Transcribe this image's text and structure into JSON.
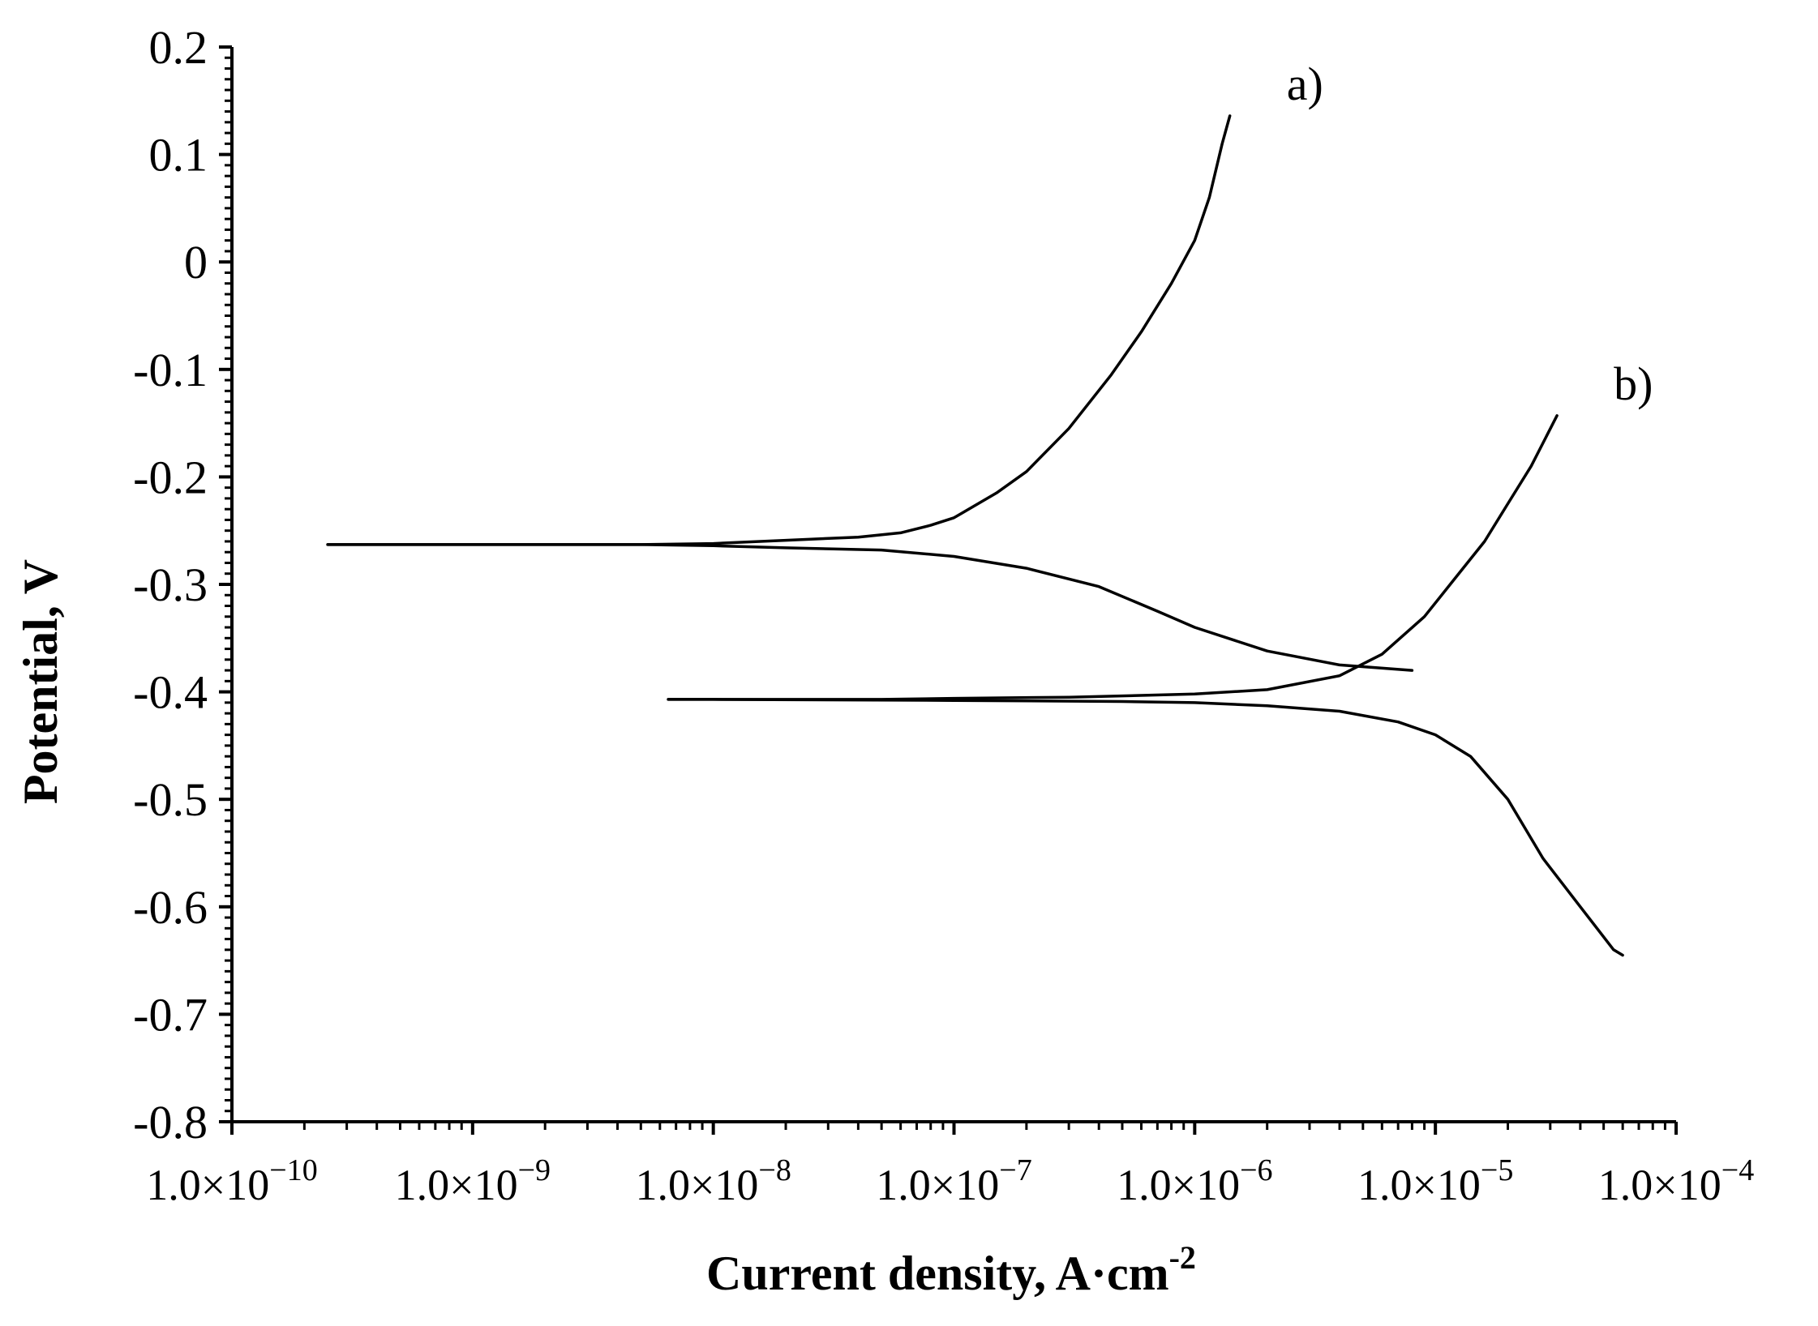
{
  "chart_data": {
    "type": "line",
    "xlabel": "Current density, A·cm",
    "xlabel_superscript": "-2",
    "ylabel": "Potential, V",
    "x_scale": "log",
    "xlim": [
      1e-10,
      0.0001
    ],
    "ylim": [
      -0.8,
      0.2
    ],
    "grid": false,
    "legend": "none",
    "line_color": "#000000",
    "y_ticks": [
      {
        "value": 0.2,
        "label": "0.2"
      },
      {
        "value": 0.1,
        "label": "0.1"
      },
      {
        "value": 0.0,
        "label": "0"
      },
      {
        "value": -0.1,
        "label": "-0.1"
      },
      {
        "value": -0.2,
        "label": "-0.2"
      },
      {
        "value": -0.3,
        "label": "-0.3"
      },
      {
        "value": -0.4,
        "label": "-0.4"
      },
      {
        "value": -0.5,
        "label": "-0.5"
      },
      {
        "value": -0.6,
        "label": "-0.6"
      },
      {
        "value": -0.7,
        "label": "-0.7"
      },
      {
        "value": -0.8,
        "label": "-0.8"
      }
    ],
    "x_ticks": [
      {
        "value": 1e-10,
        "mantissa": "1.0×10",
        "exp": "−10"
      },
      {
        "value": 1e-09,
        "mantissa": "1.0×10",
        "exp": "−9"
      },
      {
        "value": 1e-08,
        "mantissa": "1.0×10",
        "exp": "−8"
      },
      {
        "value": 1e-07,
        "mantissa": "1.0×10",
        "exp": "−7"
      },
      {
        "value": 1e-06,
        "mantissa": "1.0×10",
        "exp": "−6"
      },
      {
        "value": 1e-05,
        "mantissa": "1.0×10",
        "exp": "−5"
      },
      {
        "value": 0.0001,
        "mantissa": "1.0×10",
        "exp": "−4"
      }
    ],
    "series": [
      {
        "name": "a)",
        "anodic": [
          [
            2.5e-10,
            -0.263
          ],
          [
            1e-09,
            -0.263
          ],
          [
            5e-09,
            -0.263
          ],
          [
            1e-08,
            -0.262
          ],
          [
            2e-08,
            -0.259
          ],
          [
            4e-08,
            -0.256
          ],
          [
            6e-08,
            -0.252
          ],
          [
            8e-08,
            -0.245
          ],
          [
            1e-07,
            -0.238
          ],
          [
            1.5e-07,
            -0.215
          ],
          [
            2e-07,
            -0.195
          ],
          [
            3e-07,
            -0.155
          ],
          [
            4.5e-07,
            -0.105
          ],
          [
            6e-07,
            -0.065
          ],
          [
            8e-07,
            -0.02
          ],
          [
            1e-06,
            0.02
          ],
          [
            1.15e-06,
            0.06
          ],
          [
            1.3e-06,
            0.11
          ],
          [
            1.4e-06,
            0.136
          ]
        ],
        "cathodic": [
          [
            2.5e-10,
            -0.263
          ],
          [
            1e-09,
            -0.263
          ],
          [
            5e-09,
            -0.263
          ],
          [
            1e-08,
            -0.264
          ],
          [
            2e-08,
            -0.266
          ],
          [
            5e-08,
            -0.268
          ],
          [
            1e-07,
            -0.274
          ],
          [
            2e-07,
            -0.285
          ],
          [
            4e-07,
            -0.302
          ],
          [
            7e-07,
            -0.325
          ],
          [
            1e-06,
            -0.34
          ],
          [
            2e-06,
            -0.362
          ],
          [
            4e-06,
            -0.375
          ],
          [
            8e-06,
            -0.38
          ]
        ]
      },
      {
        "name": "b)",
        "anodic": [
          [
            6.5e-09,
            -0.407
          ],
          [
            1e-08,
            -0.407
          ],
          [
            5e-08,
            -0.407
          ],
          [
            1e-07,
            -0.406
          ],
          [
            3e-07,
            -0.405
          ],
          [
            1e-06,
            -0.402
          ],
          [
            2e-06,
            -0.398
          ],
          [
            4e-06,
            -0.385
          ],
          [
            6e-06,
            -0.365
          ],
          [
            9e-06,
            -0.33
          ],
          [
            1.2e-05,
            -0.295
          ],
          [
            1.6e-05,
            -0.26
          ],
          [
            2e-05,
            -0.225
          ],
          [
            2.5e-05,
            -0.19
          ],
          [
            3.2e-05,
            -0.143
          ]
        ],
        "cathodic": [
          [
            6.5e-09,
            -0.407
          ],
          [
            1e-08,
            -0.407
          ],
          [
            1e-07,
            -0.408
          ],
          [
            5e-07,
            -0.409
          ],
          [
            1e-06,
            -0.41
          ],
          [
            2e-06,
            -0.413
          ],
          [
            4e-06,
            -0.418
          ],
          [
            7e-06,
            -0.428
          ],
          [
            1e-05,
            -0.44
          ],
          [
            1.4e-05,
            -0.46
          ],
          [
            2e-05,
            -0.5
          ],
          [
            2.8e-05,
            -0.555
          ],
          [
            4e-05,
            -0.6
          ],
          [
            5.5e-05,
            -0.64
          ],
          [
            6e-05,
            -0.645
          ]
        ]
      }
    ]
  }
}
